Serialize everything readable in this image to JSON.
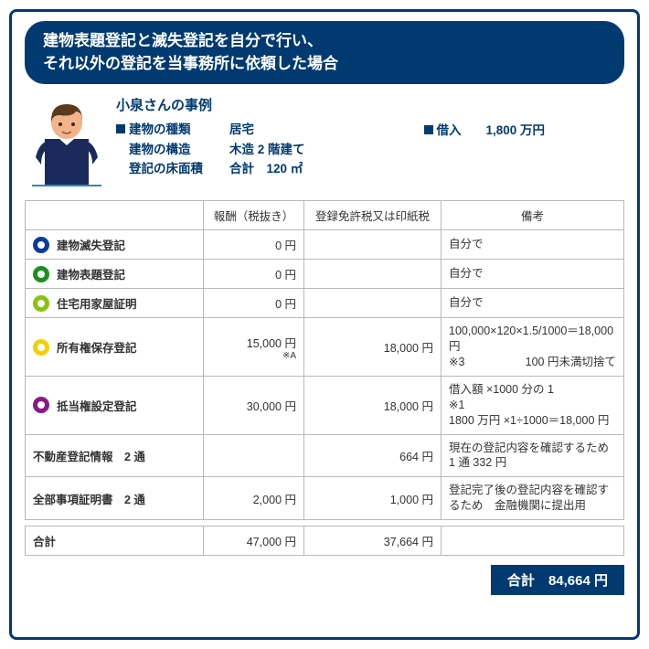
{
  "header": {
    "line1": "建物表題登記と滅失登記を自分で行い、",
    "line2": "それ以外の登記を当事務所に依頼した場合"
  },
  "profile": {
    "name": "小泉さんの事例",
    "rows": [
      {
        "label": "建物の種類",
        "value": "居宅",
        "box": true
      },
      {
        "label": "建物の構造",
        "value": "木造 2 階建て",
        "box": false
      },
      {
        "label": "登記の床面積",
        "value": "合計　120 ㎡",
        "box": false
      }
    ],
    "loan_label": "借入",
    "loan_value": "1,800 万円"
  },
  "columns": {
    "c2": "報酬（税抜き）",
    "c3": "登録免許税又は印紙税",
    "c4": "備考"
  },
  "rows": [
    {
      "color": "#0a3aa0",
      "label": "建物滅失登記",
      "fee": "0 円",
      "tax": "",
      "note": "自分で"
    },
    {
      "color": "#1f8f1f",
      "label": "建物表題登記",
      "fee": "0 円",
      "tax": "",
      "note": "自分で"
    },
    {
      "color": "#87c40e",
      "label": "住宅用家屋証明",
      "fee": "0 円",
      "tax": "",
      "note": "自分で"
    },
    {
      "color": "#f5d000",
      "label": "所有権保存登記",
      "fee": "15,000 円",
      "fee_sub": "※A",
      "tax": "18,000 円",
      "note_html": true,
      "note_l1a": "※3",
      "note_l1b": "100,000×120×1.5/1000＝18,000 円",
      "note_l2": "100 円未満切捨て"
    },
    {
      "color": "#8a1a88",
      "label": "抵当権設定登記",
      "fee": "30,000 円",
      "tax": "18,000 円",
      "note_multi": true,
      "note_m1": "借入額 ×1000 分の 1",
      "note_m2": "※1",
      "note_m3": "1800 万円 ×1÷1000＝18,000 円"
    },
    {
      "plain": true,
      "label": "不動産登記情報　2 通",
      "fee": "",
      "tax": "664 円",
      "note_multi2": true,
      "note_p1": "現在の登記内容を確認するため",
      "note_p2": "1 通 332 円"
    },
    {
      "plain": true,
      "label": "全部事項証明書　2 通",
      "fee": "2,000 円",
      "tax": "1,000 円",
      "note_multi2": true,
      "note_p1": "登記完了後の登記内容を確認す",
      "note_p2": "るため　金融機関に提出用"
    }
  ],
  "subtotal": {
    "label": "合計",
    "fee": "47,000 円",
    "tax": "37,664 円"
  },
  "total": {
    "label": "合計",
    "value": "84,664 円"
  }
}
